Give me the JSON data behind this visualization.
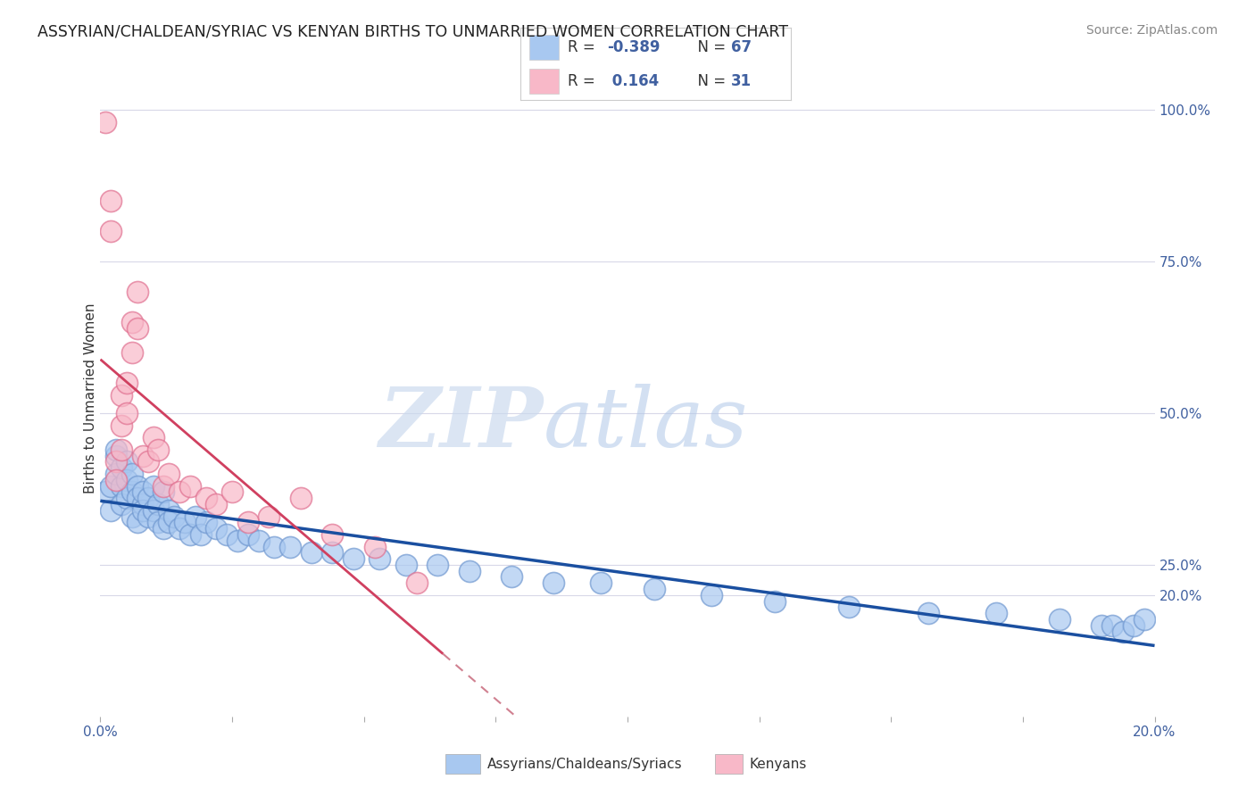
{
  "title": "ASSYRIAN/CHALDEAN/SYRIAC VS KENYAN BIRTHS TO UNMARRIED WOMEN CORRELATION CHART",
  "source": "Source: ZipAtlas.com",
  "ylabel": "Births to Unmarried Women",
  "legend_blue_label": "Assyrians/Chaldeans/Syriacs",
  "legend_pink_label": "Kenyans",
  "R_blue": -0.389,
  "N_blue": 67,
  "R_pink": 0.164,
  "N_pink": 31,
  "blue_color": "#a8c8f0",
  "blue_edge_color": "#7098d0",
  "pink_color": "#f8b8c8",
  "pink_edge_color": "#e07090",
  "trend_blue_color": "#1a4fa0",
  "trend_pink_color": "#d04060",
  "trend_pink_dash_color": "#d08090",
  "background_color": "#ffffff",
  "plot_bg_color": "#ffffff",
  "text_color": "#4060a0",
  "grid_color": "#d8d8e8",
  "watermark_color": "#d0dcf0",
  "blue_dots_x": [
    0.001,
    0.002,
    0.002,
    0.003,
    0.003,
    0.003,
    0.004,
    0.004,
    0.004,
    0.005,
    0.005,
    0.005,
    0.006,
    0.006,
    0.006,
    0.007,
    0.007,
    0.007,
    0.008,
    0.008,
    0.008,
    0.009,
    0.009,
    0.01,
    0.01,
    0.011,
    0.011,
    0.012,
    0.012,
    0.013,
    0.013,
    0.014,
    0.015,
    0.016,
    0.017,
    0.018,
    0.019,
    0.02,
    0.022,
    0.024,
    0.026,
    0.028,
    0.03,
    0.033,
    0.036,
    0.04,
    0.044,
    0.048,
    0.053,
    0.058,
    0.064,
    0.07,
    0.078,
    0.086,
    0.095,
    0.105,
    0.116,
    0.128,
    0.142,
    0.157,
    0.17,
    0.182,
    0.19,
    0.192,
    0.194,
    0.196,
    0.198
  ],
  "blue_dots_y": [
    0.37,
    0.34,
    0.38,
    0.43,
    0.4,
    0.44,
    0.38,
    0.41,
    0.35,
    0.42,
    0.39,
    0.36,
    0.37,
    0.4,
    0.33,
    0.38,
    0.36,
    0.32,
    0.35,
    0.37,
    0.34,
    0.36,
    0.33,
    0.38,
    0.34,
    0.35,
    0.32,
    0.37,
    0.31,
    0.34,
    0.32,
    0.33,
    0.31,
    0.32,
    0.3,
    0.33,
    0.3,
    0.32,
    0.31,
    0.3,
    0.29,
    0.3,
    0.29,
    0.28,
    0.28,
    0.27,
    0.27,
    0.26,
    0.26,
    0.25,
    0.25,
    0.24,
    0.23,
    0.22,
    0.22,
    0.21,
    0.2,
    0.19,
    0.18,
    0.17,
    0.17,
    0.16,
    0.15,
    0.15,
    0.14,
    0.15,
    0.16
  ],
  "pink_dots_x": [
    0.001,
    0.002,
    0.002,
    0.003,
    0.003,
    0.004,
    0.004,
    0.004,
    0.005,
    0.005,
    0.006,
    0.006,
    0.007,
    0.007,
    0.008,
    0.009,
    0.01,
    0.011,
    0.012,
    0.013,
    0.015,
    0.017,
    0.02,
    0.022,
    0.025,
    0.028,
    0.032,
    0.038,
    0.044,
    0.052,
    0.06
  ],
  "pink_dots_y": [
    0.98,
    0.85,
    0.8,
    0.42,
    0.39,
    0.53,
    0.48,
    0.44,
    0.55,
    0.5,
    0.65,
    0.6,
    0.7,
    0.64,
    0.43,
    0.42,
    0.46,
    0.44,
    0.38,
    0.4,
    0.37,
    0.38,
    0.36,
    0.35,
    0.37,
    0.32,
    0.33,
    0.36,
    0.3,
    0.28,
    0.22
  ],
  "xmin": 0.0,
  "xmax": 0.2,
  "ymin": 0.0,
  "ymax": 1.05,
  "ytick_positions": [
    0.2,
    0.25,
    0.5,
    0.75,
    1.0
  ],
  "ytick_labels": [
    "20.0%",
    "25.0%",
    "50.0%",
    "75.0%",
    "100.0%"
  ],
  "xtick_positions": [
    0.0,
    0.025,
    0.05,
    0.075,
    0.1,
    0.125,
    0.15,
    0.175,
    0.2
  ],
  "xtick_labels": [
    "0.0%",
    "",
    "",
    "",
    "",
    "",
    "",
    "",
    "20.0%"
  ]
}
